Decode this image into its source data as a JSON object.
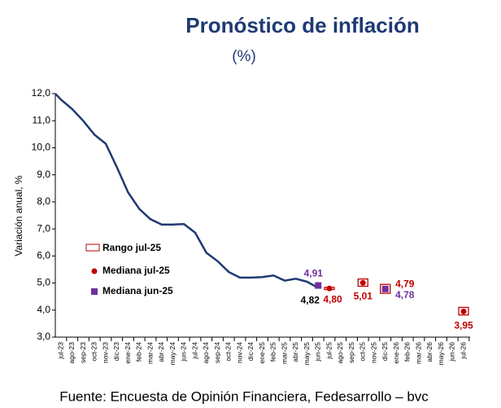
{
  "chart_data": {
    "type": "line",
    "title": "Pronóstico de inflación",
    "subtitle": "(%)",
    "y_label": "Variación anual, %",
    "source": "Fuente: Encuesta de Opinión Financiera, Fedesarrollo – bvc",
    "categories": [
      "jul-23",
      "ago-23",
      "sep-23",
      "oct-23",
      "nov-23",
      "dic-23",
      "ene-24",
      "feb-24",
      "mar-24",
      "abr-24",
      "may-24",
      "jun-24",
      "jul-24",
      "ago-24",
      "sep-24",
      "oct-24",
      "nov-24",
      "dic-24",
      "ene-25",
      "feb-25",
      "mar-25",
      "abr-25",
      "may-25",
      "jun-25",
      "jul-25",
      "ago-25",
      "sep-25",
      "oct-25",
      "nov-25",
      "dic-25",
      "ene-26",
      "feb-26",
      "mar-26",
      "abr-26",
      "may-26",
      "jun-26",
      "jul-26"
    ],
    "ylim": [
      3,
      12
    ],
    "yticks": [
      {
        "value": 3,
        "label": "3,0"
      },
      {
        "value": 4,
        "label": "4,0"
      },
      {
        "value": 5,
        "label": "5,0"
      },
      {
        "value": 6,
        "label": "6,0"
      },
      {
        "value": 7,
        "label": "7,0"
      },
      {
        "value": 8,
        "label": "8,0"
      },
      {
        "value": 9,
        "label": "9,0"
      },
      {
        "value": 10,
        "label": "10,0"
      },
      {
        "value": 11,
        "label": "11,0"
      },
      {
        "value": 12,
        "label": "12,0"
      }
    ],
    "line": {
      "color": "#1f3a73",
      "values": [
        11.78,
        11.43,
        10.99,
        10.48,
        10.15,
        9.28,
        8.35,
        7.74,
        7.36,
        7.16,
        7.16,
        7.18,
        6.86,
        6.12,
        5.81,
        5.41,
        5.2,
        5.2,
        5.22,
        5.28,
        5.09,
        5.16,
        5.05,
        4.82,
        null,
        null,
        null,
        null,
        null,
        null,
        null,
        null,
        null,
        null,
        null,
        null,
        null
      ],
      "value_labels": [
        null,
        null,
        null,
        null,
        null,
        null,
        null,
        null,
        null,
        null,
        null,
        null,
        null,
        null,
        null,
        null,
        null,
        null,
        null,
        null,
        null,
        null,
        null,
        "4,82",
        null,
        null,
        null,
        null,
        null,
        null,
        null,
        null,
        null,
        null,
        null,
        null,
        null
      ]
    },
    "series": [
      {
        "name": "Rango jul-25",
        "color": "#c00000",
        "low": [
          null,
          null,
          null,
          null,
          null,
          null,
          null,
          null,
          null,
          null,
          null,
          null,
          null,
          null,
          null,
          null,
          null,
          null,
          null,
          null,
          null,
          null,
          null,
          null,
          4.76,
          null,
          null,
          4.88,
          null,
          4.62,
          null,
          null,
          null,
          null,
          null,
          null,
          3.82
        ],
        "high": [
          null,
          null,
          null,
          null,
          null,
          null,
          null,
          null,
          null,
          null,
          null,
          null,
          null,
          null,
          null,
          null,
          null,
          null,
          null,
          null,
          null,
          null,
          null,
          null,
          4.84,
          null,
          null,
          5.15,
          null,
          4.95,
          null,
          null,
          null,
          null,
          null,
          null,
          4.1
        ]
      },
      {
        "name": "Mediana jul-25",
        "color": "#c00000",
        "values": [
          null,
          null,
          null,
          null,
          null,
          null,
          null,
          null,
          null,
          null,
          null,
          null,
          null,
          null,
          null,
          null,
          null,
          null,
          null,
          null,
          null,
          null,
          null,
          null,
          4.8,
          null,
          null,
          5.01,
          null,
          4.79,
          null,
          null,
          null,
          null,
          null,
          null,
          3.95
        ],
        "value_labels": [
          null,
          null,
          null,
          null,
          null,
          null,
          null,
          null,
          null,
          null,
          null,
          null,
          null,
          null,
          null,
          null,
          null,
          null,
          null,
          null,
          null,
          null,
          null,
          null,
          "4,80",
          null,
          null,
          "5,01",
          null,
          "4,79",
          null,
          null,
          null,
          null,
          null,
          null,
          "3,95"
        ]
      },
      {
        "name": "Mediana jun-25",
        "color": "#7030a0",
        "values": [
          null,
          null,
          null,
          null,
          null,
          null,
          null,
          null,
          null,
          null,
          null,
          null,
          null,
          null,
          null,
          null,
          null,
          null,
          null,
          null,
          null,
          null,
          null,
          4.91,
          null,
          null,
          null,
          null,
          null,
          4.78,
          null,
          null,
          null,
          null,
          null,
          null,
          null
        ],
        "value_labels": [
          null,
          null,
          null,
          null,
          null,
          null,
          null,
          null,
          null,
          null,
          null,
          null,
          null,
          null,
          null,
          null,
          null,
          null,
          null,
          null,
          null,
          null,
          null,
          "4,91",
          null,
          null,
          null,
          null,
          null,
          "4,78",
          null,
          null,
          null,
          null,
          null,
          null,
          null
        ]
      }
    ]
  }
}
